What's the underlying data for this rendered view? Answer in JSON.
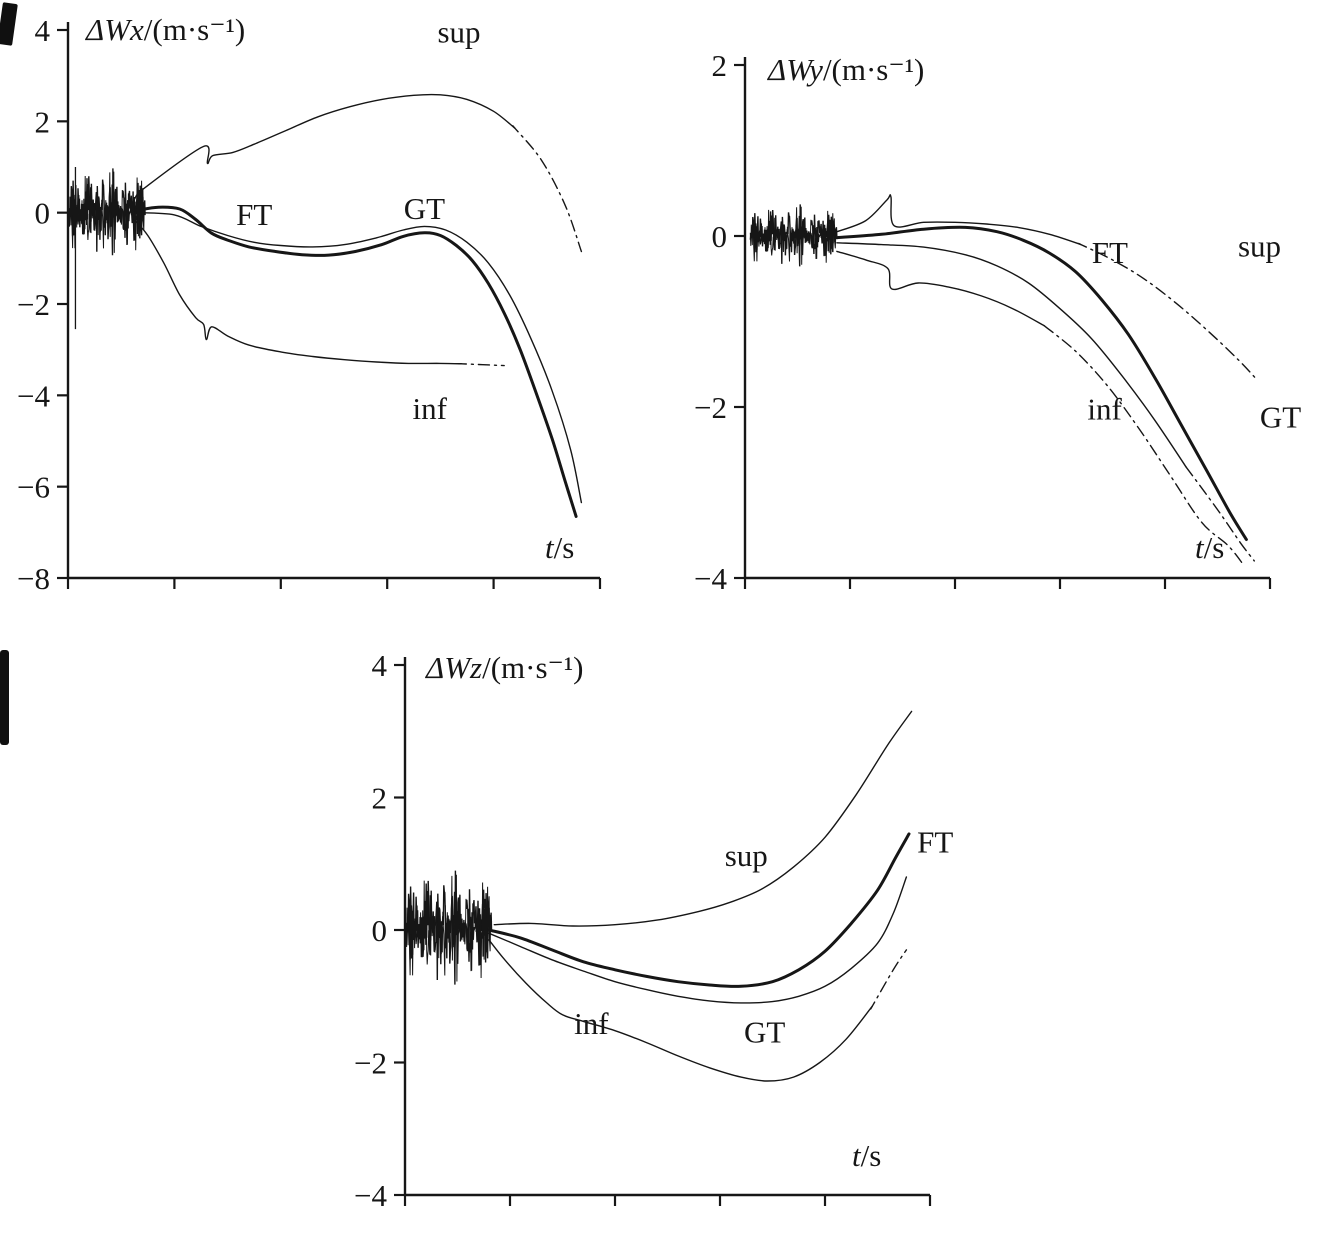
{
  "figure": {
    "background": "#ffffff",
    "ink": "#161616"
  },
  "chart_data": [
    {
      "id": "wx",
      "type": "line",
      "title": {
        "var": "ΔWx",
        "unit": "/(m·s⁻¹)"
      },
      "xlabel": {
        "var": "t",
        "unit": "/s"
      },
      "xlim": [
        0,
        10
      ],
      "ylim": [
        -8,
        4
      ],
      "yticks": [
        4,
        2,
        0,
        -2,
        -4,
        -6,
        -8
      ],
      "xticks": [
        0,
        2,
        4,
        6,
        8,
        10
      ],
      "xtick_labels_visible": false,
      "grid": false,
      "noise": {
        "x_start": 0.02,
        "x_end": 1.45,
        "center": 0,
        "amplitude": 1.05,
        "spike": {
          "x": 0.14,
          "y1": 1.0,
          "y2": -2.55
        }
      },
      "series": [
        {
          "name": "sup",
          "width": 1.4,
          "dash_from": 8.4,
          "points": [
            [
              1.25,
              0.3
            ],
            [
              1.45,
              0.55
            ],
            [
              2.55,
              1.45
            ],
            [
              2.62,
              1.08
            ],
            [
              2.72,
              1.25
            ],
            [
              3.1,
              1.32
            ],
            [
              3.5,
              1.5
            ],
            [
              4.1,
              1.8
            ],
            [
              4.7,
              2.1
            ],
            [
              5.3,
              2.32
            ],
            [
              5.9,
              2.48
            ],
            [
              6.5,
              2.57
            ],
            [
              7.0,
              2.58
            ],
            [
              7.5,
              2.48
            ],
            [
              8.0,
              2.22
            ],
            [
              8.4,
              1.85
            ],
            [
              8.9,
              1.15
            ],
            [
              9.35,
              0.15
            ],
            [
              9.65,
              -0.85
            ]
          ]
        },
        {
          "name": "inf",
          "width": 1.4,
          "dash_from": 7.4,
          "points": [
            [
              1.25,
              -0.15
            ],
            [
              1.5,
              -0.5
            ],
            [
              1.8,
              -1.1
            ],
            [
              2.1,
              -1.8
            ],
            [
              2.4,
              -2.3
            ],
            [
              2.55,
              -2.45
            ],
            [
              2.6,
              -2.78
            ],
            [
              2.7,
              -2.5
            ],
            [
              3.0,
              -2.7
            ],
            [
              3.4,
              -2.9
            ],
            [
              4.0,
              -3.05
            ],
            [
              4.6,
              -3.15
            ],
            [
              5.2,
              -3.22
            ],
            [
              5.8,
              -3.27
            ],
            [
              6.4,
              -3.3
            ],
            [
              7.0,
              -3.3
            ],
            [
              7.4,
              -3.31
            ],
            [
              8.2,
              -3.35
            ]
          ]
        },
        {
          "name": "GT",
          "width": 1.4,
          "points": [
            [
              1.3,
              0.0
            ],
            [
              2.0,
              -0.05
            ],
            [
              2.5,
              -0.3
            ],
            [
              3.0,
              -0.5
            ],
            [
              3.5,
              -0.65
            ],
            [
              4.0,
              -0.72
            ],
            [
              4.6,
              -0.75
            ],
            [
              5.2,
              -0.7
            ],
            [
              5.8,
              -0.55
            ],
            [
              6.3,
              -0.38
            ],
            [
              6.7,
              -0.3
            ],
            [
              7.1,
              -0.38
            ],
            [
              7.5,
              -0.65
            ],
            [
              7.9,
              -1.1
            ],
            [
              8.3,
              -1.8
            ],
            [
              8.7,
              -2.75
            ],
            [
              9.1,
              -3.9
            ],
            [
              9.45,
              -5.2
            ],
            [
              9.65,
              -6.35
            ]
          ]
        },
        {
          "name": "FT",
          "width": 3,
          "points": [
            [
              1.3,
              0.05
            ],
            [
              1.7,
              0.12
            ],
            [
              2.1,
              0.08
            ],
            [
              2.4,
              -0.15
            ],
            [
              2.7,
              -0.45
            ],
            [
              3.0,
              -0.6
            ],
            [
              3.4,
              -0.75
            ],
            [
              3.9,
              -0.85
            ],
            [
              4.4,
              -0.92
            ],
            [
              4.9,
              -0.93
            ],
            [
              5.4,
              -0.85
            ],
            [
              5.9,
              -0.7
            ],
            [
              6.3,
              -0.52
            ],
            [
              6.7,
              -0.44
            ],
            [
              7.0,
              -0.5
            ],
            [
              7.3,
              -0.72
            ],
            [
              7.6,
              -1.05
            ],
            [
              7.9,
              -1.55
            ],
            [
              8.2,
              -2.2
            ],
            [
              8.5,
              -3.0
            ],
            [
              8.8,
              -3.95
            ],
            [
              9.1,
              -4.95
            ],
            [
              9.35,
              -5.9
            ],
            [
              9.55,
              -6.65
            ]
          ]
        }
      ],
      "annotations": [
        {
          "text": "sup",
          "x": 7.35,
          "y": 3.95
        },
        {
          "text": "FT",
          "x": 3.5,
          "y": -0.05
        },
        {
          "text": "GT",
          "x": 6.7,
          "y": 0.08
        },
        {
          "text": "inf",
          "x": 6.8,
          "y": -4.3
        }
      ]
    },
    {
      "id": "wy",
      "type": "line",
      "title": {
        "var": "ΔWy",
        "unit": "/(m·s⁻¹)"
      },
      "xlabel": {
        "var": "t",
        "unit": "/s"
      },
      "xlim": [
        0,
        10
      ],
      "ylim": [
        -4,
        2
      ],
      "yticks": [
        2,
        0,
        -2,
        -4
      ],
      "xticks": [
        0,
        2,
        4,
        6,
        8,
        10
      ],
      "xtick_labels_visible": false,
      "grid": false,
      "noise": {
        "x_start": 0.1,
        "x_end": 1.75,
        "center": 0,
        "amplitude": 0.4
      },
      "series": [
        {
          "name": "sup",
          "width": 1.4,
          "dash_from": 6.4,
          "points": [
            [
              1.75,
              0.05
            ],
            [
              2.3,
              0.18
            ],
            [
              2.7,
              0.42
            ],
            [
              2.78,
              0.46
            ],
            [
              2.84,
              0.12
            ],
            [
              3.4,
              0.16
            ],
            [
              4.0,
              0.16
            ],
            [
              4.6,
              0.14
            ],
            [
              5.2,
              0.1
            ],
            [
              5.8,
              0.02
            ],
            [
              6.4,
              -0.1
            ],
            [
              7.0,
              -0.28
            ],
            [
              7.6,
              -0.5
            ],
            [
              8.2,
              -0.78
            ],
            [
              8.8,
              -1.1
            ],
            [
              9.4,
              -1.45
            ],
            [
              9.75,
              -1.68
            ]
          ]
        },
        {
          "name": "inf",
          "width": 1.4,
          "dash_from": 5.8,
          "points": [
            [
              1.75,
              -0.18
            ],
            [
              2.3,
              -0.28
            ],
            [
              2.72,
              -0.38
            ],
            [
              2.8,
              -0.62
            ],
            [
              3.3,
              -0.55
            ],
            [
              3.9,
              -0.6
            ],
            [
              4.5,
              -0.7
            ],
            [
              5.1,
              -0.85
            ],
            [
              5.7,
              -1.05
            ],
            [
              6.3,
              -1.35
            ],
            [
              6.9,
              -1.75
            ],
            [
              7.5,
              -2.25
            ],
            [
              8.1,
              -2.8
            ],
            [
              8.7,
              -3.35
            ],
            [
              9.2,
              -3.62
            ],
            [
              9.5,
              -3.85
            ]
          ]
        },
        {
          "name": "GT",
          "width": 1.4,
          "dash_from": 8.6,
          "points": [
            [
              1.75,
              -0.08
            ],
            [
              2.6,
              -0.1
            ],
            [
              3.4,
              -0.13
            ],
            [
              4.2,
              -0.22
            ],
            [
              4.8,
              -0.35
            ],
            [
              5.4,
              -0.55
            ],
            [
              6.0,
              -0.85
            ],
            [
              6.6,
              -1.2
            ],
            [
              7.2,
              -1.65
            ],
            [
              7.8,
              -2.15
            ],
            [
              8.4,
              -2.7
            ],
            [
              9.0,
              -3.2
            ],
            [
              9.45,
              -3.6
            ],
            [
              9.7,
              -3.8
            ]
          ]
        },
        {
          "name": "FT",
          "width": 3,
          "points": [
            [
              1.75,
              -0.02
            ],
            [
              2.6,
              0.02
            ],
            [
              3.4,
              0.08
            ],
            [
              4.2,
              0.1
            ],
            [
              4.8,
              0.05
            ],
            [
              5.3,
              -0.05
            ],
            [
              5.8,
              -0.2
            ],
            [
              6.3,
              -0.42
            ],
            [
              6.8,
              -0.75
            ],
            [
              7.3,
              -1.15
            ],
            [
              7.8,
              -1.65
            ],
            [
              8.3,
              -2.2
            ],
            [
              8.8,
              -2.75
            ],
            [
              9.25,
              -3.25
            ],
            [
              9.55,
              -3.55
            ]
          ]
        }
      ],
      "annotations": [
        {
          "text": "FT",
          "x": 6.95,
          "y": -0.2
        },
        {
          "text": "sup",
          "x": 9.8,
          "y": -0.12
        },
        {
          "text": "inf",
          "x": 6.85,
          "y": -2.03
        },
        {
          "text": "GT",
          "x": 10.2,
          "y": -2.12
        }
      ]
    },
    {
      "id": "wz",
      "type": "line",
      "title": {
        "var": "ΔWz",
        "unit": "/(m·s⁻¹)"
      },
      "xlabel": {
        "var": "t",
        "unit": "/s"
      },
      "xlim": [
        0,
        10
      ],
      "ylim": [
        -4,
        4
      ],
      "yticks": [
        4,
        2,
        0,
        -2,
        -4
      ],
      "xticks": [
        0,
        2,
        4,
        6,
        8,
        10
      ],
      "xtick_labels_visible": false,
      "grid": false,
      "noise": {
        "x_start": 0.02,
        "x_end": 1.65,
        "center": 0.02,
        "amplitude": 0.95
      },
      "series": [
        {
          "name": "sup",
          "width": 1.4,
          "points": [
            [
              1.7,
              0.08
            ],
            [
              2.4,
              0.1
            ],
            [
              3.2,
              0.06
            ],
            [
              4.0,
              0.08
            ],
            [
              4.8,
              0.15
            ],
            [
              5.6,
              0.28
            ],
            [
              6.2,
              0.42
            ],
            [
              6.8,
              0.62
            ],
            [
              7.4,
              0.95
            ],
            [
              8.0,
              1.4
            ],
            [
              8.6,
              2.05
            ],
            [
              9.2,
              2.8
            ],
            [
              9.65,
              3.3
            ]
          ]
        },
        {
          "name": "inf",
          "width": 1.4,
          "dash_from": 8.9,
          "points": [
            [
              1.6,
              -0.15
            ],
            [
              1.9,
              -0.45
            ],
            [
              2.3,
              -0.8
            ],
            [
              2.7,
              -1.1
            ],
            [
              3.0,
              -1.28
            ],
            [
              3.4,
              -1.38
            ],
            [
              4.0,
              -1.52
            ],
            [
              4.6,
              -1.7
            ],
            [
              5.2,
              -1.9
            ],
            [
              5.8,
              -2.08
            ],
            [
              6.4,
              -2.22
            ],
            [
              6.9,
              -2.28
            ],
            [
              7.4,
              -2.22
            ],
            [
              7.9,
              -2.0
            ],
            [
              8.4,
              -1.65
            ],
            [
              8.9,
              -1.15
            ],
            [
              9.3,
              -0.6
            ],
            [
              9.55,
              -0.3
            ]
          ]
        },
        {
          "name": "GT",
          "width": 1.4,
          "points": [
            [
              1.6,
              -0.05
            ],
            [
              2.2,
              -0.25
            ],
            [
              2.8,
              -0.45
            ],
            [
              3.4,
              -0.62
            ],
            [
              4.0,
              -0.78
            ],
            [
              4.6,
              -0.9
            ],
            [
              5.2,
              -1.0
            ],
            [
              5.8,
              -1.07
            ],
            [
              6.4,
              -1.1
            ],
            [
              7.0,
              -1.08
            ],
            [
              7.5,
              -1.0
            ],
            [
              8.0,
              -0.85
            ],
            [
              8.5,
              -0.58
            ],
            [
              9.0,
              -0.2
            ],
            [
              9.3,
              0.25
            ],
            [
              9.55,
              0.8
            ]
          ]
        },
        {
          "name": "FT",
          "width": 3,
          "points": [
            [
              1.6,
              0.0
            ],
            [
              2.2,
              -0.12
            ],
            [
              2.8,
              -0.3
            ],
            [
              3.4,
              -0.48
            ],
            [
              4.0,
              -0.6
            ],
            [
              4.6,
              -0.7
            ],
            [
              5.2,
              -0.78
            ],
            [
              5.8,
              -0.83
            ],
            [
              6.4,
              -0.85
            ],
            [
              7.0,
              -0.78
            ],
            [
              7.5,
              -0.6
            ],
            [
              8.0,
              -0.32
            ],
            [
              8.5,
              0.1
            ],
            [
              9.0,
              0.6
            ],
            [
              9.35,
              1.1
            ],
            [
              9.6,
              1.45
            ]
          ]
        }
      ],
      "annotations": [
        {
          "text": "sup",
          "x": 6.5,
          "y": 1.12
        },
        {
          "text": "FT",
          "x": 10.1,
          "y": 1.32
        },
        {
          "text": "inf",
          "x": 3.55,
          "y": -1.42
        },
        {
          "text": "GT",
          "x": 6.85,
          "y": -1.55
        }
      ]
    }
  ]
}
